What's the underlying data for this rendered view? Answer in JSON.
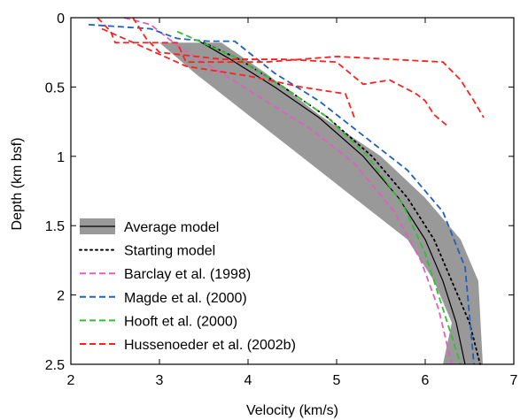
{
  "chart_data": {
    "type": "line",
    "title": "",
    "xlabel": "Velocity (km/s)",
    "ylabel": "Depth (km bsf)",
    "xlim": [
      2,
      7
    ],
    "ylim": [
      2.5,
      0
    ],
    "y_inverted": true,
    "xticks": [
      2,
      3,
      4,
      5,
      6,
      7
    ],
    "xtick_labels": [
      "2",
      "3",
      "4",
      "5",
      "6",
      "7"
    ],
    "yticks": [
      0,
      0.5,
      1,
      1.5,
      2,
      2.5
    ],
    "ytick_labels": [
      "0",
      "0.5",
      "1",
      "1.5",
      "2",
      "2.5"
    ],
    "grid": false,
    "legend_position": "bottom-left",
    "band": {
      "name": "Average model",
      "color": "#999999",
      "upper": [
        [
          3.2,
          0.18
        ],
        [
          3.7,
          0.18
        ],
        [
          4.2,
          0.4
        ],
        [
          4.8,
          0.7
        ],
        [
          5.5,
          1.0
        ],
        [
          6.0,
          1.3
        ],
        [
          6.4,
          1.6
        ],
        [
          6.6,
          1.9
        ],
        [
          6.65,
          2.5
        ]
      ],
      "lower": [
        [
          3.0,
          0.18
        ],
        [
          3.4,
          0.4
        ],
        [
          4.0,
          0.7
        ],
        [
          4.6,
          1.0
        ],
        [
          5.2,
          1.3
        ],
        [
          5.8,
          1.6
        ],
        [
          6.1,
          1.9
        ],
        [
          6.3,
          2.2
        ],
        [
          6.2,
          2.5
        ]
      ]
    },
    "series": [
      {
        "name": "Average model",
        "color": "#000000",
        "style": "solid",
        "x": [
          3.45,
          3.8,
          4.3,
          4.8,
          5.3,
          5.7,
          6.0,
          6.2,
          6.35,
          6.45
        ],
        "y": [
          0.17,
          0.3,
          0.5,
          0.72,
          1.0,
          1.3,
          1.6,
          1.9,
          2.2,
          2.5
        ]
      },
      {
        "name": "Starting model",
        "color": "#000000",
        "style": "dotted",
        "x": [
          3.5,
          3.9,
          4.4,
          4.9,
          5.4,
          5.8,
          6.1,
          6.3,
          6.5,
          6.62
        ],
        "y": [
          0.18,
          0.3,
          0.5,
          0.72,
          1.0,
          1.3,
          1.6,
          1.9,
          2.2,
          2.5
        ]
      },
      {
        "name": "Barclay et al. (1998)",
        "color": "#e060c0",
        "style": "dashed",
        "x": [
          2.6,
          2.9,
          3.2,
          3.7,
          4.2,
          4.7,
          5.2,
          5.65,
          5.95,
          6.15,
          6.3
        ],
        "y": [
          0.0,
          0.05,
          0.2,
          0.4,
          0.6,
          0.8,
          1.05,
          1.4,
          1.75,
          2.1,
          2.5
        ]
      },
      {
        "name": "Magde et al. (2000)",
        "color": "#2060c0",
        "style": "dashed",
        "x": [
          2.2,
          2.9,
          3.2,
          3.55,
          3.85,
          4.3,
          4.8,
          5.3,
          5.8,
          6.2,
          6.45,
          6.55
        ],
        "y": [
          0.05,
          0.08,
          0.15,
          0.17,
          0.17,
          0.4,
          0.6,
          0.85,
          1.1,
          1.4,
          1.8,
          2.5
        ]
      },
      {
        "name": "Hooft et al. (2000)",
        "color": "#30c030",
        "style": "dashed",
        "x": [
          3.2,
          3.45,
          3.9,
          4.4,
          4.9,
          5.35,
          5.75,
          6.0,
          6.2,
          6.4
        ],
        "y": [
          0.1,
          0.17,
          0.3,
          0.5,
          0.72,
          1.0,
          1.35,
          1.7,
          2.1,
          2.5
        ]
      },
      {
        "name": "Hussenoeder et al. (2002b) A",
        "color": "#ff2020",
        "style": "dashed",
        "x": [
          2.3,
          2.45,
          2.5,
          3.2,
          3.3,
          4.2,
          5.0,
          6.2,
          6.4,
          6.55,
          6.66
        ],
        "y": [
          0.0,
          0.1,
          0.18,
          0.18,
          0.32,
          0.32,
          0.28,
          0.32,
          0.45,
          0.6,
          0.72
        ]
      },
      {
        "name": "Hussenoeder et al. (2002b) B",
        "color": "#ff2020",
        "style": "dashed",
        "x": [
          2.7,
          2.85,
          3.0,
          3.7,
          4.4,
          5.0,
          5.3,
          5.6,
          5.9,
          6.0,
          6.1,
          6.25
        ],
        "y": [
          0.0,
          0.15,
          0.25,
          0.3,
          0.3,
          0.32,
          0.48,
          0.45,
          0.55,
          0.6,
          0.7,
          0.78
        ]
      },
      {
        "name": "Hussenoeder et al. (2002b) C",
        "color": "#ff2020",
        "style": "dashed",
        "x": [
          2.35,
          2.6,
          3.3,
          4.0,
          4.6,
          5.1,
          5.2
        ],
        "y": [
          0.08,
          0.15,
          0.35,
          0.42,
          0.5,
          0.55,
          0.72
        ]
      }
    ],
    "legend": [
      {
        "label": "Average model",
        "kind": "band",
        "color": "#999999",
        "line_color": "#000000"
      },
      {
        "label": "Starting model",
        "kind": "dotted",
        "color": "#000000"
      },
      {
        "label": "Barclay et al. (1998)",
        "kind": "dashed",
        "color": "#e060c0"
      },
      {
        "label": "Magde et al. (2000)",
        "kind": "dashed",
        "color": "#2060c0"
      },
      {
        "label": "Hooft et al. (2000)",
        "kind": "dashed",
        "color": "#30c030"
      },
      {
        "label": "Hussenoeder et al. (2002b)",
        "kind": "dashed",
        "color": "#ff2020"
      }
    ]
  }
}
